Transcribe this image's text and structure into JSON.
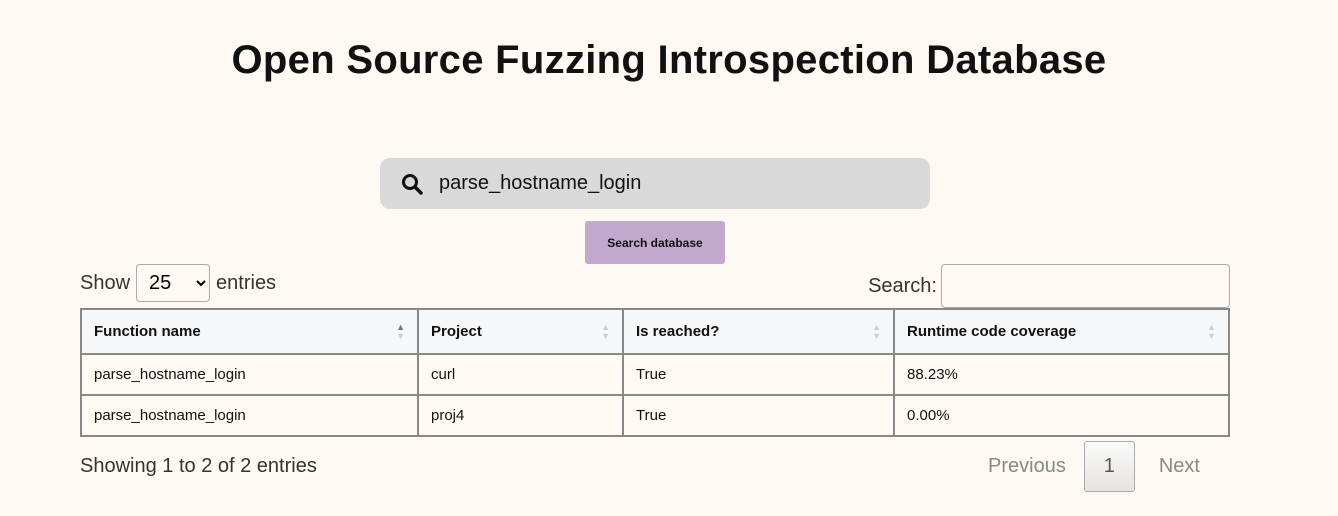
{
  "title": "Open Source Fuzzing Introspection Database",
  "search": {
    "value": "parse_hostname_login",
    "button": "Search database"
  },
  "length": {
    "prefix": "Show",
    "value": "25",
    "suffix": "entries"
  },
  "filter": {
    "label": "Search:",
    "value": ""
  },
  "table": {
    "headers": [
      "Function name",
      "Project",
      "Is reached?",
      "Runtime code coverage"
    ],
    "rows": [
      [
        "parse_hostname_login",
        "curl",
        "True",
        "88.23%"
      ],
      [
        "parse_hostname_login",
        "proj4",
        "True",
        "0.00%"
      ]
    ]
  },
  "info": "Showing 1 to 2 of 2 entries",
  "pagination": {
    "previous": "Previous",
    "current": "1",
    "next": "Next"
  }
}
